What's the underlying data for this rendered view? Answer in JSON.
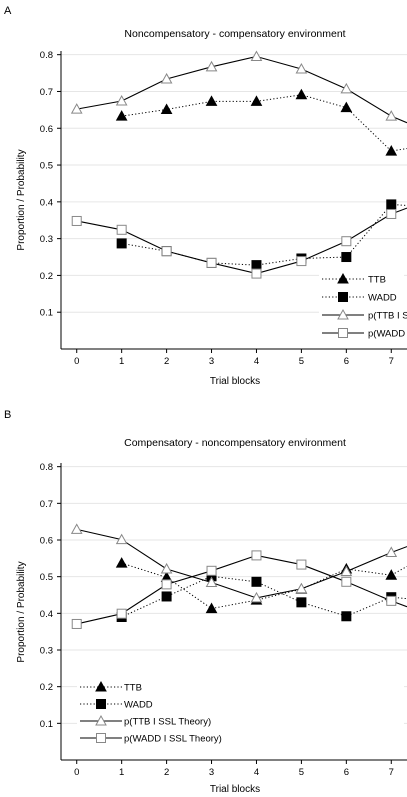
{
  "colors": {
    "text": "#000000",
    "axis": "#000000",
    "grid": "#e6e6e6",
    "line": "#000000",
    "marker_open": "#888888",
    "marker_fill": "#ffffff"
  },
  "chart_data": [
    {
      "panel_label": "A",
      "type": "line",
      "title": "Noncompensatory - compensatory environment",
      "xlabel": "Trial blocks",
      "ylabel": "Proportion / Probability",
      "x_ticks": [
        "0",
        "1",
        "2",
        "3",
        "4",
        "5",
        "6",
        "7"
      ],
      "y_ticks": [
        "0.1",
        "0.2",
        "0.3",
        "0.4",
        "0.5",
        "0.6",
        "0.7",
        "0.8"
      ],
      "xlim": [
        -0.35,
        7.35
      ],
      "ylim": [
        0.0,
        0.81
      ],
      "grid": "horizontal",
      "legend_position": "bottom-right",
      "series": [
        {
          "name": "TTB",
          "line_style": "dotted",
          "marker": "filled-triangle",
          "x": [
            1,
            2,
            3,
            4,
            5,
            6,
            7,
            7.35
          ],
          "values": [
            0.633,
            0.651,
            0.673,
            0.673,
            0.691,
            0.656,
            0.538,
            0.545
          ]
        },
        {
          "name": "WADD",
          "line_style": "dotted",
          "marker": "filled-square",
          "x": [
            1,
            2,
            3,
            4,
            5,
            6,
            7,
            7.35
          ],
          "values": [
            0.287,
            0.266,
            0.234,
            0.228,
            0.246,
            0.25,
            0.393,
            0.39
          ]
        },
        {
          "name": "p(TTB I S",
          "line_style": "solid",
          "marker": "open-triangle",
          "x": [
            0,
            1,
            2,
            3,
            4,
            5,
            6,
            7,
            7.35
          ],
          "values": [
            0.652,
            0.674,
            0.734,
            0.767,
            0.795,
            0.761,
            0.707,
            0.633,
            0.615
          ]
        },
        {
          "name": "p(WADD",
          "line_style": "solid",
          "marker": "open-square",
          "x": [
            0,
            1,
            2,
            3,
            4,
            5,
            6,
            7,
            7.35
          ],
          "values": [
            0.348,
            0.324,
            0.266,
            0.234,
            0.205,
            0.239,
            0.293,
            0.367,
            0.383
          ]
        }
      ]
    },
    {
      "panel_label": "B",
      "type": "line",
      "title": "Compensatory - noncompensatory environment",
      "xlabel": "Trial blocks",
      "ylabel": "Proportion / Probability",
      "x_ticks": [
        "0",
        "1",
        "2",
        "3",
        "4",
        "5",
        "6",
        "7"
      ],
      "y_ticks": [
        "0.1",
        "0.2",
        "0.3",
        "0.4",
        "0.5",
        "0.6",
        "0.7",
        "0.8"
      ],
      "xlim": [
        -0.35,
        7.35
      ],
      "ylim": [
        0.0,
        0.81
      ],
      "grid": "horizontal",
      "legend_position": "bottom-left",
      "series": [
        {
          "name": "TTB",
          "line_style": "dotted",
          "marker": "filled-triangle",
          "x": [
            1,
            2,
            3,
            4,
            5,
            6,
            7,
            7.35
          ],
          "values": [
            0.537,
            0.498,
            0.413,
            0.436,
            0.466,
            0.521,
            0.504,
            0.528
          ]
        },
        {
          "name": "WADD",
          "line_style": "dotted",
          "marker": "filled-square",
          "x": [
            1,
            2,
            3,
            4,
            5,
            6,
            7,
            7.35
          ],
          "values": [
            0.39,
            0.446,
            0.501,
            0.486,
            0.43,
            0.392,
            0.444,
            0.44
          ]
        },
        {
          "name": "p(TTB I SSL Theory)",
          "line_style": "solid",
          "marker": "open-triangle",
          "x": [
            0,
            1,
            2,
            3,
            4,
            5,
            6,
            7,
            7.35
          ],
          "values": [
            0.629,
            0.601,
            0.521,
            0.484,
            0.442,
            0.467,
            0.514,
            0.566,
            0.582
          ]
        },
        {
          "name": "p(WADD I SSL Theory)",
          "line_style": "solid",
          "marker": "open-square",
          "x": [
            0,
            1,
            2,
            3,
            4,
            5,
            6,
            7,
            7.35
          ],
          "values": [
            0.371,
            0.399,
            0.479,
            0.516,
            0.558,
            0.533,
            0.486,
            0.434,
            0.418
          ]
        }
      ]
    }
  ]
}
